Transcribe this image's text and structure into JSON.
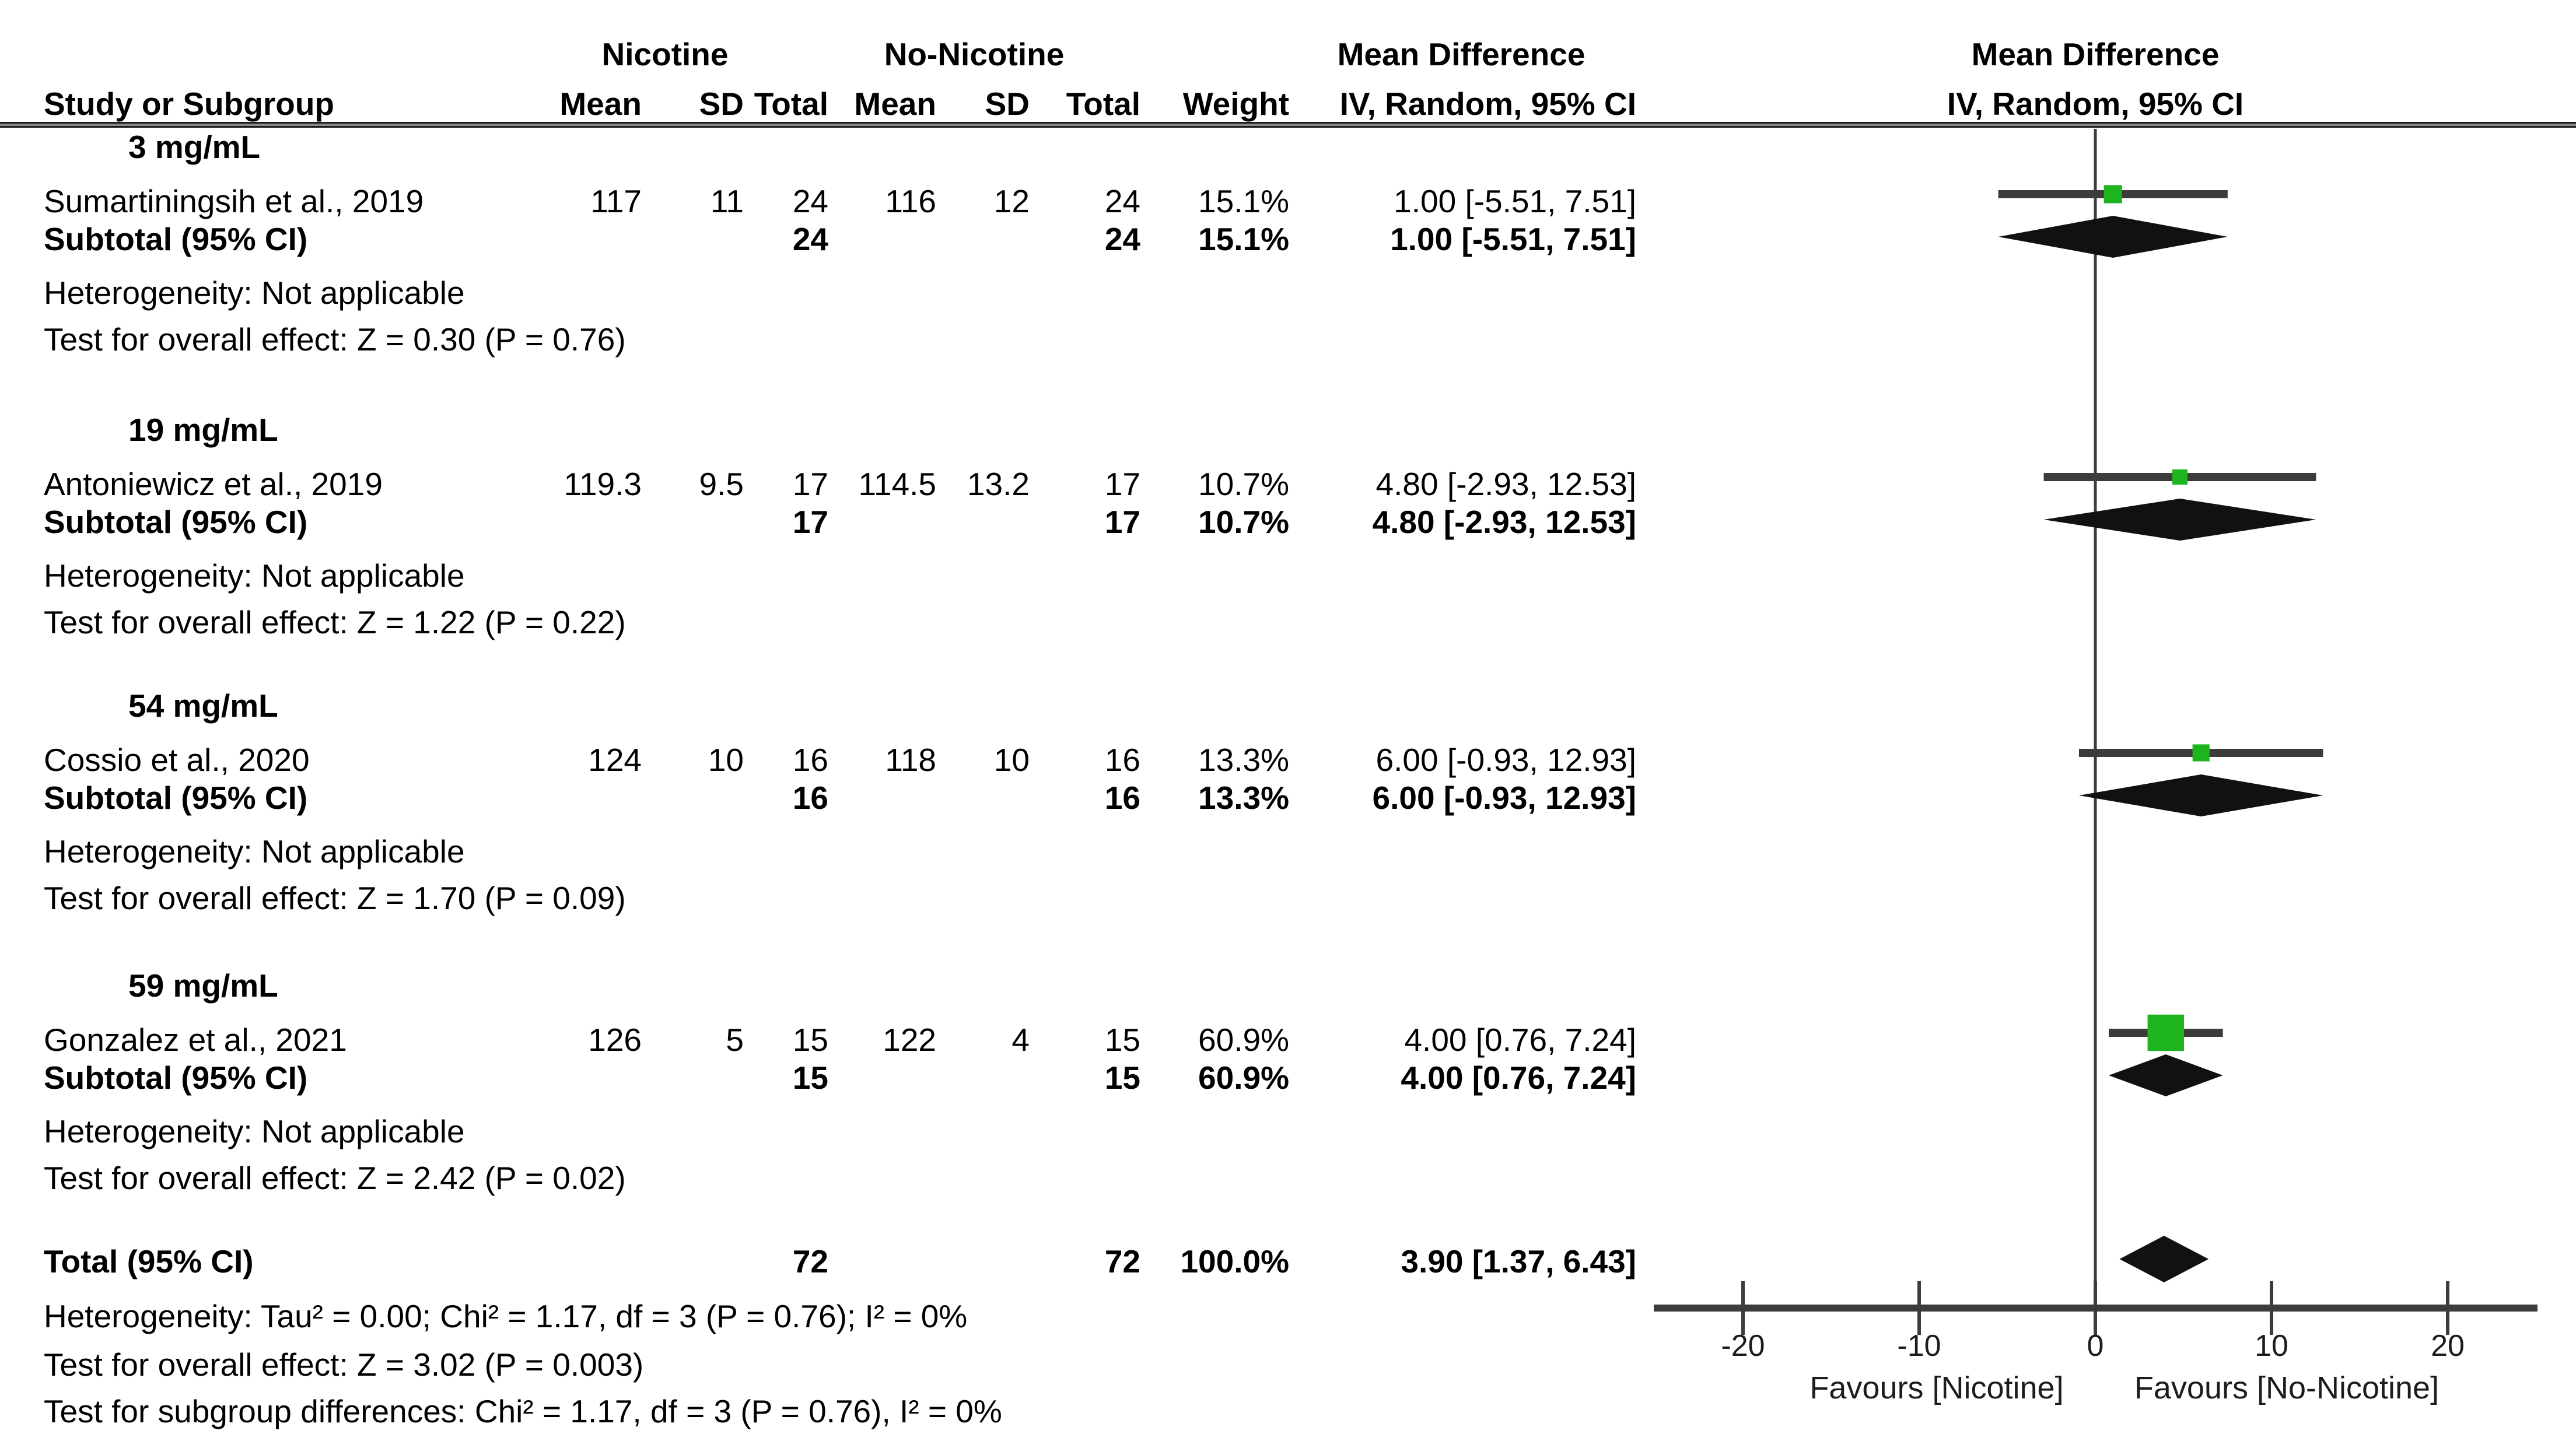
{
  "header": {
    "study_col": "Study or Subgroup",
    "group_nicotine": "Nicotine",
    "group_no_nicotine": "No-Nicotine",
    "mean": "Mean",
    "sd": "SD",
    "total": "Total",
    "weight": "Weight",
    "md_line1": "Mean Difference",
    "md_line2": "IV, Random, 95% CI",
    "plot_line1": "Mean Difference",
    "plot_line2": "IV, Random, 95% CI"
  },
  "table": {
    "subgroups": [
      {
        "label": "3 mg/mL",
        "studies": [
          {
            "name": "Sumartiningsih et al., 2019",
            "mean_t": "117",
            "sd_t": "11",
            "total_t": "24",
            "mean_c": "116",
            "sd_c": "12",
            "total_c": "24",
            "weight": "15.1%",
            "ci_text": "1.00 [-5.51, 7.51]",
            "md": 1.0,
            "lo": -5.51,
            "hi": 7.51,
            "weight_val": 15.1
          }
        ],
        "subtotal": {
          "label": "Subtotal (95% CI)",
          "total_t": "24",
          "total_c": "24",
          "weight": "15.1%",
          "ci_text": "1.00 [-5.51, 7.51]",
          "md": 1.0,
          "lo": -5.51,
          "hi": 7.51
        },
        "heterogeneity": "Heterogeneity: Not applicable",
        "overall_test": "Test for overall effect: Z = 0.30 (P = 0.76)"
      },
      {
        "label": "19 mg/mL",
        "studies": [
          {
            "name": "Antoniewicz et al., 2019",
            "mean_t": "119.3",
            "sd_t": "9.5",
            "total_t": "17",
            "mean_c": "114.5",
            "sd_c": "13.2",
            "total_c": "17",
            "weight": "10.7%",
            "ci_text": "4.80 [-2.93, 12.53]",
            "md": 4.8,
            "lo": -2.93,
            "hi": 12.53,
            "weight_val": 10.7
          }
        ],
        "subtotal": {
          "label": "Subtotal (95% CI)",
          "total_t": "17",
          "total_c": "17",
          "weight": "10.7%",
          "ci_text": "4.80 [-2.93, 12.53]",
          "md": 4.8,
          "lo": -2.93,
          "hi": 12.53
        },
        "heterogeneity": "Heterogeneity: Not applicable",
        "overall_test": "Test for overall effect: Z = 1.22 (P = 0.22)"
      },
      {
        "label": "54 mg/mL",
        "studies": [
          {
            "name": "Cossio et al., 2020",
            "mean_t": "124",
            "sd_t": "10",
            "total_t": "16",
            "mean_c": "118",
            "sd_c": "10",
            "total_c": "16",
            "weight": "13.3%",
            "ci_text": "6.00 [-0.93, 12.93]",
            "md": 6.0,
            "lo": -0.93,
            "hi": 12.93,
            "weight_val": 13.3
          }
        ],
        "subtotal": {
          "label": "Subtotal (95% CI)",
          "total_t": "16",
          "total_c": "16",
          "weight": "13.3%",
          "ci_text": "6.00 [-0.93, 12.93]",
          "md": 6.0,
          "lo": -0.93,
          "hi": 12.93
        },
        "heterogeneity": "Heterogeneity: Not applicable",
        "overall_test": "Test for overall effect: Z = 1.70 (P = 0.09)"
      },
      {
        "label": "59 mg/mL",
        "studies": [
          {
            "name": "Gonzalez et al., 2021",
            "mean_t": "126",
            "sd_t": "5",
            "total_t": "15",
            "mean_c": "122",
            "sd_c": "4",
            "total_c": "15",
            "weight": "60.9%",
            "ci_text": "4.00 [0.76, 7.24]",
            "md": 4.0,
            "lo": 0.76,
            "hi": 7.24,
            "weight_val": 60.9
          }
        ],
        "subtotal": {
          "label": "Subtotal (95% CI)",
          "total_t": "15",
          "total_c": "15",
          "weight": "60.9%",
          "ci_text": "4.00 [0.76, 7.24]",
          "md": 4.0,
          "lo": 0.76,
          "hi": 7.24
        },
        "heterogeneity": "Heterogeneity: Not applicable",
        "overall_test": "Test for overall effect: Z = 2.42 (P = 0.02)"
      }
    ],
    "total": {
      "label": "Total (95% CI)",
      "total_t": "72",
      "total_c": "72",
      "weight": "100.0%",
      "ci_text": "3.90 [1.37, 6.43]",
      "md": 3.9,
      "lo": 1.37,
      "hi": 6.43
    },
    "footer": {
      "heterogeneity": "Heterogeneity: Tau² = 0.00; Chi² = 1.17, df = 3 (P = 0.76); I² = 0%",
      "overall_test": "Test for overall effect: Z = 3.02 (P = 0.003)",
      "subgroup_test": "Test for subgroup differences: Chi² = 1.17, df = 3 (P = 0.76), I² = 0%"
    }
  },
  "axis": {
    "ticks": [
      "-20",
      "-10",
      "0",
      "10",
      "20"
    ],
    "tick_values": [
      -20,
      -10,
      0,
      10,
      20
    ],
    "favours_left": "Favours [Nicotine]",
    "favours_right": "Favours [No-Nicotine]"
  },
  "colors": {
    "marker_green": "#1EB41E",
    "line_dark": "#3C3C3C",
    "text": "#000000"
  },
  "chart_data": {
    "type": "forest",
    "title": "",
    "effect_label": "Mean Difference",
    "method_label": "IV, Random, 95% CI",
    "xlim": [
      -25,
      25
    ],
    "x_ticks": [
      -20,
      -10,
      0,
      10,
      20
    ],
    "grid": false,
    "favours": [
      "Favours [Nicotine]",
      "Favours [No-Nicotine]"
    ],
    "rows": [
      {
        "label": "Sumartiningsih et al., 2019",
        "subgroup": "3 mg/mL",
        "md": 1.0,
        "ci_low": -5.51,
        "ci_high": 7.51,
        "weight_pct": 15.1,
        "marker": "square"
      },
      {
        "label": "Subtotal (95% CI) 3 mg/mL",
        "subgroup": "3 mg/mL",
        "md": 1.0,
        "ci_low": -5.51,
        "ci_high": 7.51,
        "weight_pct": 15.1,
        "marker": "diamond"
      },
      {
        "label": "Antoniewicz et al., 2019",
        "subgroup": "19 mg/mL",
        "md": 4.8,
        "ci_low": -2.93,
        "ci_high": 12.53,
        "weight_pct": 10.7,
        "marker": "square"
      },
      {
        "label": "Subtotal (95% CI) 19 mg/mL",
        "subgroup": "19 mg/mL",
        "md": 4.8,
        "ci_low": -2.93,
        "ci_high": 12.53,
        "weight_pct": 10.7,
        "marker": "diamond"
      },
      {
        "label": "Cossio et al., 2020",
        "subgroup": "54 mg/mL",
        "md": 6.0,
        "ci_low": -0.93,
        "ci_high": 12.93,
        "weight_pct": 13.3,
        "marker": "square"
      },
      {
        "label": "Subtotal (95% CI) 54 mg/mL",
        "subgroup": "54 mg/mL",
        "md": 6.0,
        "ci_low": -0.93,
        "ci_high": 12.93,
        "weight_pct": 13.3,
        "marker": "diamond"
      },
      {
        "label": "Gonzalez et al., 2021",
        "subgroup": "59 mg/mL",
        "md": 4.0,
        "ci_low": 0.76,
        "ci_high": 7.24,
        "weight_pct": 60.9,
        "marker": "square"
      },
      {
        "label": "Subtotal (95% CI) 59 mg/mL",
        "subgroup": "59 mg/mL",
        "md": 4.0,
        "ci_low": 0.76,
        "ci_high": 7.24,
        "weight_pct": 60.9,
        "marker": "diamond"
      },
      {
        "label": "Total (95% CI)",
        "md": 3.9,
        "ci_low": 1.37,
        "ci_high": 6.43,
        "weight_pct": 100.0,
        "marker": "diamond"
      }
    ]
  }
}
